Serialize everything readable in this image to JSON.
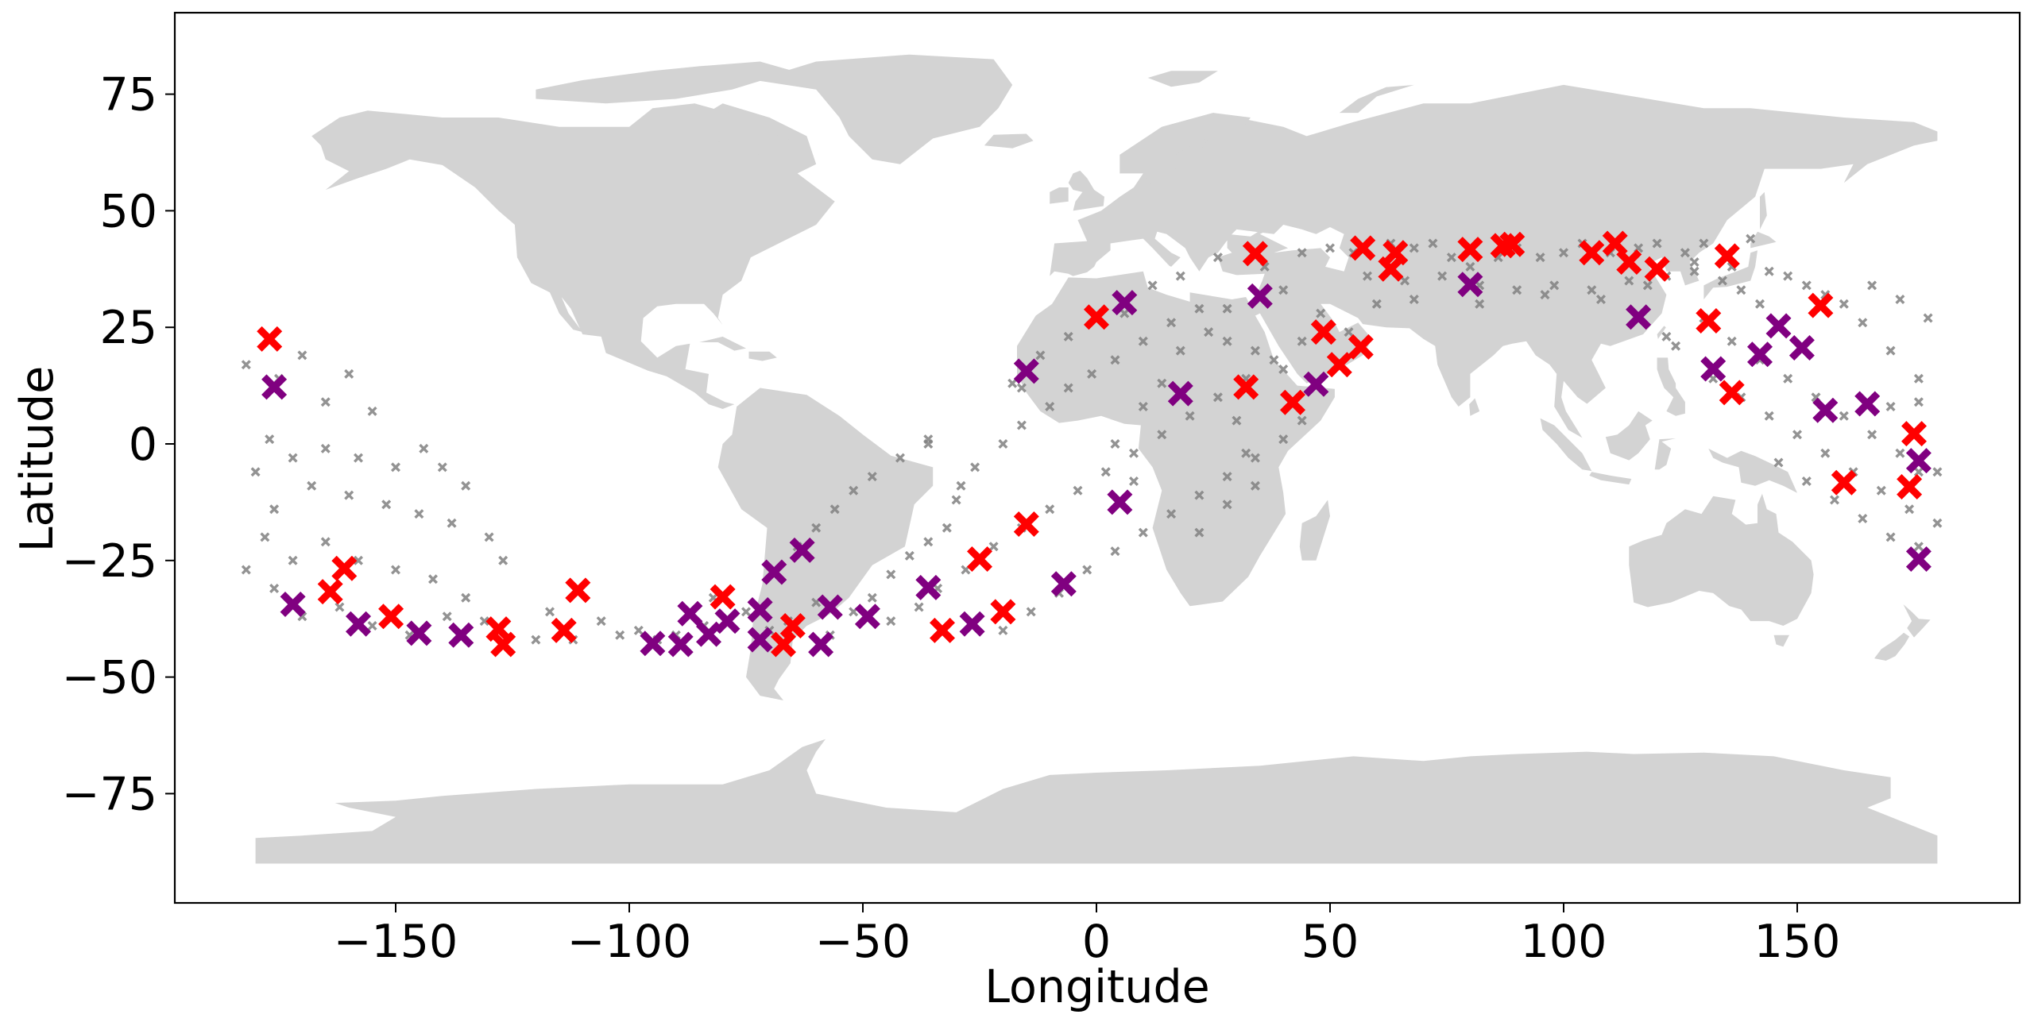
{
  "chart_data": {
    "type": "scatter",
    "title": "",
    "xlabel": "Longitude",
    "ylabel": "Latitude",
    "xlim": [
      -197.5,
      197.5
    ],
    "ylim": [
      -98.5,
      92.5
    ],
    "xticks": [
      -150,
      -100,
      -50,
      0,
      50,
      100,
      150
    ],
    "xtick_labels": [
      "−150",
      "−100",
      "−50",
      "0",
      "50",
      "100",
      "150"
    ],
    "yticks": [
      75,
      50,
      25,
      0,
      -25,
      -50,
      -75
    ],
    "ytick_labels": [
      "75",
      "50",
      "25",
      "0",
      "−25",
      "−50",
      "−75"
    ],
    "grid": false,
    "legend": null,
    "background_map": {
      "type": "world-land-outline",
      "color": "#d3d3d3"
    },
    "series": [
      {
        "name": "gray-points",
        "marker": "X",
        "color": "#808080",
        "size": "small",
        "points": [
          [
            -182,
            17
          ],
          [
            -175,
            14
          ],
          [
            -170,
            19
          ],
          [
            -165,
            9
          ],
          [
            -160,
            15
          ],
          [
            -155,
            7
          ],
          [
            -177,
            1
          ],
          [
            -172,
            -3
          ],
          [
            -165,
            -1
          ],
          [
            -158,
            -3
          ],
          [
            -150,
            -5
          ],
          [
            -144,
            -1
          ],
          [
            -140,
            -5
          ],
          [
            -135,
            -9
          ],
          [
            -180,
            -6
          ],
          [
            -176,
            -14
          ],
          [
            -168,
            -9
          ],
          [
            -160,
            -11
          ],
          [
            -152,
            -13
          ],
          [
            -145,
            -15
          ],
          [
            -138,
            -17
          ],
          [
            -130,
            -20
          ],
          [
            -178,
            -20
          ],
          [
            -172,
            -25
          ],
          [
            -165,
            -21
          ],
          [
            -158,
            -25
          ],
          [
            -150,
            -27
          ],
          [
            -142,
            -29
          ],
          [
            -135,
            -33
          ],
          [
            -127,
            -25
          ],
          [
            -182,
            -27
          ],
          [
            -176,
            -31
          ],
          [
            -170,
            -37
          ],
          [
            -162,
            -35
          ],
          [
            -155,
            -39
          ],
          [
            -147,
            -41
          ],
          [
            -139,
            -37
          ],
          [
            -131,
            -38
          ],
          [
            -120,
            -42
          ],
          [
            -117,
            -36
          ],
          [
            -112,
            -42
          ],
          [
            -106,
            -38
          ],
          [
            -102,
            -41
          ],
          [
            -98,
            -40
          ],
          [
            -94,
            -42
          ],
          [
            -90,
            -41
          ],
          [
            -84,
            -39
          ],
          [
            -82,
            -33
          ],
          [
            -75,
            -36
          ],
          [
            -70,
            -40
          ],
          [
            -66,
            -38
          ],
          [
            -60,
            -34
          ],
          [
            -57,
            -41
          ],
          [
            -52,
            -36
          ],
          [
            -48,
            -33
          ],
          [
            -44,
            -28
          ],
          [
            -40,
            -24
          ],
          [
            -36,
            -21
          ],
          [
            -32,
            -18
          ],
          [
            -30,
            -12
          ],
          [
            -29,
            -9
          ],
          [
            -26,
            -5
          ],
          [
            -20,
            0
          ],
          [
            -16,
            4
          ],
          [
            -10,
            8
          ],
          [
            -6,
            12
          ],
          [
            -1,
            15
          ],
          [
            4,
            18
          ],
          [
            10,
            22
          ],
          [
            16,
            26
          ],
          [
            22,
            29
          ],
          [
            -36,
            0
          ],
          [
            -36,
            1
          ],
          [
            -42,
            -3
          ],
          [
            -48,
            -7
          ],
          [
            -52,
            -10
          ],
          [
            -56,
            -14
          ],
          [
            -60,
            -18
          ],
          [
            -64,
            -22
          ],
          [
            -44,
            -38
          ],
          [
            -38,
            -35
          ],
          [
            -34,
            -31
          ],
          [
            -28,
            -27
          ],
          [
            -22,
            -22
          ],
          [
            -16,
            -18
          ],
          [
            -10,
            -14
          ],
          [
            -4,
            -10
          ],
          [
            2,
            -6
          ],
          [
            8,
            -2
          ],
          [
            14,
            2
          ],
          [
            20,
            6
          ],
          [
            26,
            10
          ],
          [
            32,
            14
          ],
          [
            38,
            18
          ],
          [
            44,
            22
          ],
          [
            -20,
            -40
          ],
          [
            -14,
            -36
          ],
          [
            -8,
            -32
          ],
          [
            -2,
            -27
          ],
          [
            4,
            -23
          ],
          [
            10,
            -19
          ],
          [
            16,
            -15
          ],
          [
            22,
            -11
          ],
          [
            28,
            -7
          ],
          [
            34,
            -3
          ],
          [
            40,
            1
          ],
          [
            -16,
            12
          ],
          [
            -18,
            13
          ],
          [
            -12,
            19
          ],
          [
            -6,
            23
          ],
          [
            0,
            27
          ],
          [
            6,
            28
          ],
          [
            12,
            34
          ],
          [
            18,
            36
          ],
          [
            26,
            40
          ],
          [
            28,
            29
          ],
          [
            24,
            24
          ],
          [
            18,
            20
          ],
          [
            14,
            13
          ],
          [
            30,
            5
          ],
          [
            32,
            -2
          ],
          [
            28,
            -13
          ],
          [
            34,
            -9
          ],
          [
            22,
            -19
          ],
          [
            10,
            8
          ],
          [
            4,
            0
          ],
          [
            8,
            -8
          ],
          [
            36,
            38
          ],
          [
            44,
            41
          ],
          [
            50,
            42
          ],
          [
            55,
            41
          ],
          [
            63,
            43
          ],
          [
            68,
            42
          ],
          [
            72,
            43
          ],
          [
            76,
            40
          ],
          [
            80,
            38
          ],
          [
            86,
            40
          ],
          [
            90,
            42
          ],
          [
            95,
            40
          ],
          [
            100,
            41
          ],
          [
            104,
            43
          ],
          [
            110,
            41
          ],
          [
            116,
            42
          ],
          [
            120,
            43
          ],
          [
            126,
            41
          ],
          [
            130,
            43
          ],
          [
            140,
            44
          ],
          [
            58,
            36
          ],
          [
            66,
            35
          ],
          [
            74,
            36
          ],
          [
            82,
            34
          ],
          [
            90,
            33
          ],
          [
            98,
            34
          ],
          [
            106,
            33
          ],
          [
            114,
            35
          ],
          [
            122,
            36
          ],
          [
            128,
            39
          ],
          [
            136,
            38
          ],
          [
            144,
            37
          ],
          [
            40,
            33
          ],
          [
            48,
            28
          ],
          [
            54,
            24
          ],
          [
            60,
            30
          ],
          [
            68,
            31
          ],
          [
            82,
            30
          ],
          [
            96,
            32
          ],
          [
            108,
            31
          ],
          [
            118,
            34
          ],
          [
            128,
            37
          ],
          [
            28,
            22
          ],
          [
            34,
            20
          ],
          [
            40,
            16
          ],
          [
            44,
            5
          ],
          [
            122,
            23
          ],
          [
            124,
            21
          ],
          [
            134,
            35
          ],
          [
            138,
            33
          ],
          [
            142,
            30
          ],
          [
            148,
            36
          ],
          [
            152,
            34
          ],
          [
            156,
            32
          ],
          [
            160,
            30
          ],
          [
            164,
            26
          ],
          [
            130,
            27
          ],
          [
            136,
            22
          ],
          [
            142,
            18
          ],
          [
            148,
            14
          ],
          [
            154,
            10
          ],
          [
            160,
            6
          ],
          [
            166,
            2
          ],
          [
            172,
            -2
          ],
          [
            176,
            -6
          ],
          [
            180,
            -6
          ],
          [
            132,
            14
          ],
          [
            138,
            10
          ],
          [
            144,
            6
          ],
          [
            150,
            2
          ],
          [
            156,
            -2
          ],
          [
            162,
            -6
          ],
          [
            168,
            -10
          ],
          [
            174,
            -14
          ],
          [
            180,
            -17
          ],
          [
            146,
            -4
          ],
          [
            152,
            -8
          ],
          [
            158,
            -12
          ],
          [
            164,
            -16
          ],
          [
            170,
            -20
          ],
          [
            176,
            -22
          ],
          [
            166,
            34
          ],
          [
            172,
            31
          ],
          [
            178,
            27
          ],
          [
            170,
            20
          ],
          [
            176,
            14
          ],
          [
            170,
            8
          ],
          [
            176,
            9
          ]
        ]
      },
      {
        "name": "red-points",
        "marker": "X",
        "color": "#ff0000",
        "size": "large",
        "points": [
          [
            -177,
            22.5
          ],
          [
            -164,
            -31.7
          ],
          [
            -161,
            -26.7
          ],
          [
            -151,
            -37
          ],
          [
            -128,
            -39.7
          ],
          [
            -127,
            -43
          ],
          [
            -114,
            -40
          ],
          [
            -111,
            -31.4
          ],
          [
            -80,
            -32.8
          ],
          [
            -67,
            -43
          ],
          [
            -65,
            -39
          ],
          [
            -33,
            -40
          ],
          [
            -25,
            -24.7
          ],
          [
            -20,
            -36
          ],
          [
            -15,
            -17.2
          ],
          [
            0,
            27.2
          ],
          [
            32,
            12.2
          ],
          [
            34,
            40.8
          ],
          [
            42,
            8.9
          ],
          [
            48.6,
            24
          ],
          [
            52,
            17
          ],
          [
            56.6,
            20.8
          ],
          [
            57,
            42
          ],
          [
            63,
            37.5
          ],
          [
            64,
            41
          ],
          [
            80,
            41.7
          ],
          [
            87,
            42.5
          ],
          [
            89,
            42.8
          ],
          [
            106,
            41
          ],
          [
            111,
            43
          ],
          [
            114,
            39
          ],
          [
            120,
            37.5
          ],
          [
            131,
            26.4
          ],
          [
            136,
            11
          ],
          [
            135,
            40.3
          ],
          [
            155,
            29.7
          ],
          [
            160,
            -8.3
          ],
          [
            174,
            -9.2
          ],
          [
            175,
            2.2
          ]
        ]
      },
      {
        "name": "purple-points",
        "marker": "X",
        "color": "#800080",
        "size": "large",
        "points": [
          [
            -176,
            12.2
          ],
          [
            -172,
            -34.4
          ],
          [
            -158,
            -38.6
          ],
          [
            -145,
            -40.6
          ],
          [
            -136,
            -41
          ],
          [
            -95,
            -42.8
          ],
          [
            -89,
            -43
          ],
          [
            -87,
            -36.4
          ],
          [
            -83,
            -40.8
          ],
          [
            -79,
            -38
          ],
          [
            -72,
            -35.6
          ],
          [
            -72,
            -42
          ],
          [
            -69,
            -27.5
          ],
          [
            -63,
            -22.8
          ],
          [
            -59,
            -43
          ],
          [
            -57,
            -35
          ],
          [
            -49,
            -37
          ],
          [
            -36,
            -30.8
          ],
          [
            -26.6,
            -38.6
          ],
          [
            -15,
            15.6
          ],
          [
            -7,
            -30
          ],
          [
            5,
            -12.5
          ],
          [
            6,
            30.3
          ],
          [
            18,
            10.8
          ],
          [
            35,
            31.7
          ],
          [
            47,
            12.8
          ],
          [
            80,
            34.2
          ],
          [
            116,
            27.2
          ],
          [
            132,
            16.1
          ],
          [
            142,
            19.2
          ],
          [
            146,
            25.3
          ],
          [
            151,
            20.6
          ],
          [
            156,
            7.2
          ],
          [
            165,
            8.6
          ],
          [
            176,
            -3.6
          ],
          [
            176,
            -24.7
          ]
        ]
      }
    ]
  },
  "axes": {
    "xlabel": "Longitude",
    "ylabel": "Latitude"
  }
}
